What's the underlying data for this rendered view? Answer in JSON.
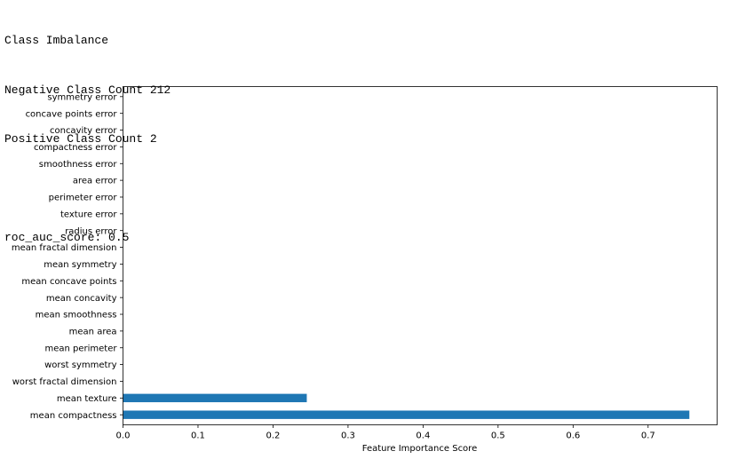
{
  "output": {
    "lines": [
      "Class Imbalance",
      "Negative Class Count 212",
      "Positive Class Count 2",
      "",
      "roc_auc_score: 0.5"
    ]
  },
  "chart_data": {
    "type": "bar",
    "orientation": "horizontal",
    "categories": [
      "mean compactness",
      "mean texture",
      "worst fractal dimension",
      "worst symmetry",
      "mean perimeter",
      "mean area",
      "mean smoothness",
      "mean concavity",
      "mean concave points",
      "mean symmetry",
      "mean fractal dimension",
      "radius error",
      "texture error",
      "perimeter error",
      "area error",
      "smoothness error",
      "compactness error",
      "concavity error",
      "concave points error",
      "symmetry error"
    ],
    "values": [
      0.755,
      0.245,
      0,
      0,
      0,
      0,
      0,
      0,
      0,
      0,
      0,
      0,
      0,
      0,
      0,
      0,
      0,
      0,
      0,
      0
    ],
    "xticks": [
      "0.0",
      "0.1",
      "0.2",
      "0.3",
      "0.4",
      "0.5",
      "0.6",
      "0.7"
    ],
    "xlabel": "Feature Importance Score",
    "ylabel": "",
    "title": "",
    "xlim": [
      0,
      0.792
    ],
    "grid": false,
    "bar_color": "#1f77b4"
  }
}
